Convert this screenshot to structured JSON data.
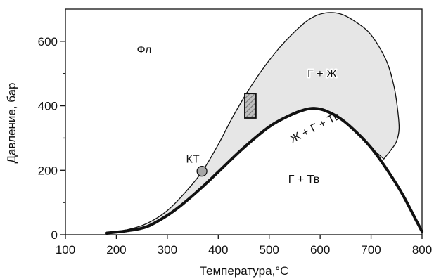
{
  "diagram": {
    "type": "phase-diagram",
    "x_axis": {
      "label": "Температура,°C",
      "range": [
        100,
        800
      ],
      "ticks": [
        100,
        200,
        300,
        400,
        500,
        600,
        700,
        800
      ],
      "tick_labels": [
        "100",
        "200",
        "300",
        "400",
        "500",
        "600",
        "700",
        "800"
      ]
    },
    "y_axis": {
      "label": "Давление, бар",
      "range": [
        0,
        700
      ],
      "ticks": [
        0,
        200,
        400,
        600
      ],
      "tick_labels": [
        "0",
        "200",
        "400",
        "600"
      ],
      "minor_ticks": [
        100,
        300,
        500
      ]
    },
    "grid": false,
    "curves": {
      "envelope": {
        "x": [
          180,
          220,
          260,
          300,
          340,
          370,
          400,
          430,
          460,
          490,
          520,
          550,
          580,
          610,
          640,
          670,
          700,
          730,
          745,
          752,
          755,
          750,
          740,
          725
        ],
        "y": [
          5,
          15,
          35,
          75,
          140,
          200,
          280,
          370,
          450,
          520,
          580,
          630,
          670,
          688,
          685,
          660,
          620,
          540,
          460,
          390,
          330,
          290,
          265,
          235
        ]
      },
      "three_phase": {
        "x": [
          180,
          220,
          260,
          300,
          330,
          370,
          400,
          450,
          500,
          540,
          570,
          590,
          610,
          640,
          670,
          700,
          730,
          760,
          790,
          800
        ],
        "y": [
          5,
          12,
          25,
          60,
          95,
          150,
          195,
          270,
          335,
          370,
          388,
          392,
          385,
          360,
          320,
          270,
          205,
          130,
          40,
          10
        ]
      }
    },
    "critical_point": {
      "x": 368,
      "y": 197,
      "label": "КТ"
    },
    "marker_box": {
      "x_range": [
        452,
        474
      ],
      "y_range": [
        362,
        438
      ]
    },
    "regions": {
      "fluid": "Фл",
      "gas_liquid": "Г + Ж",
      "liquid_gas_solid": "Ж + Г + Тв",
      "gas_solid": "Г + Тв"
    },
    "colors": {
      "envelope_fill": "#e6e6e6",
      "line": "#111111",
      "critical_point_fill": "#a6a6a6",
      "box_fill": "#bbbbbb"
    }
  }
}
